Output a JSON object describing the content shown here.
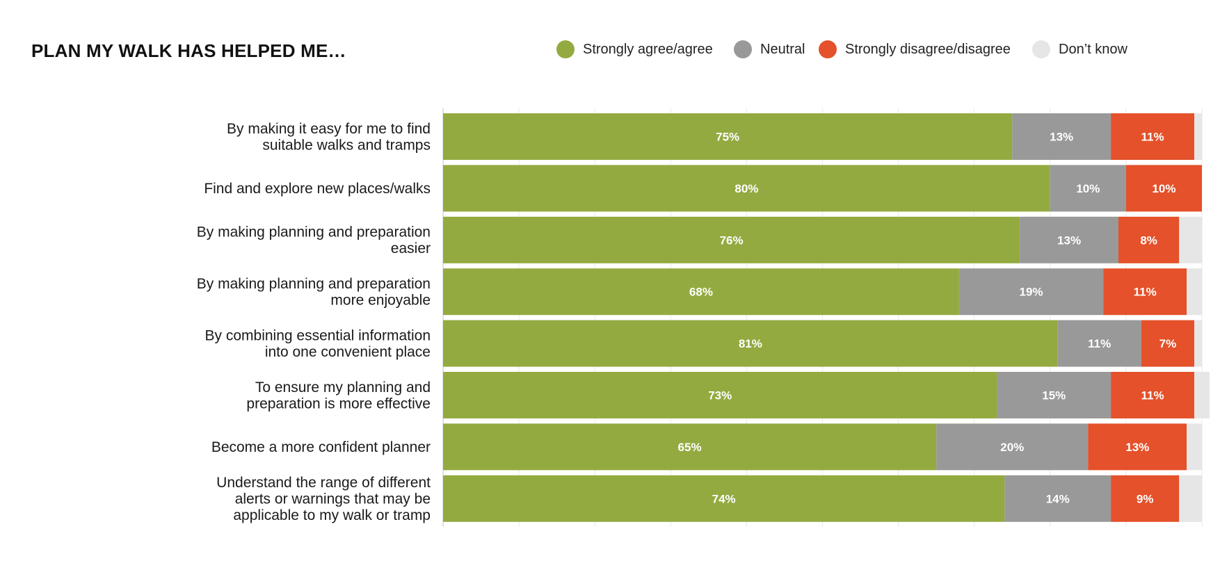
{
  "chart_data": {
    "type": "bar",
    "orientation": "horizontal",
    "stacked": true,
    "title": "PLAN MY WALK HAS HELPED ME…",
    "xlim": [
      0,
      100
    ],
    "grid": true,
    "legend_position": "top-right",
    "categories": [
      [
        "By making it easy for me to find",
        "suitable walks and tramps"
      ],
      [
        "Find and explore new places/walks"
      ],
      [
        "By making planning and preparation",
        "easier"
      ],
      [
        "By making planning and preparation",
        "more enjoyable"
      ],
      [
        "By combining essential information",
        "into one convenient place"
      ],
      [
        "To ensure my planning and",
        "preparation is more effective"
      ],
      [
        "Become a more confident planner"
      ],
      [
        "Understand the range of different",
        "alerts or warnings that may be",
        "applicable to my walk or tramp"
      ]
    ],
    "series": [
      {
        "name": "Strongly agree/agree",
        "color": "#93aa40",
        "values": [
          75,
          80,
          76,
          68,
          81,
          73,
          65,
          74
        ],
        "labels": [
          "75%",
          "80%",
          "76%",
          "68%",
          "81%",
          "73%",
          "65%",
          "74%"
        ]
      },
      {
        "name": "Neutral",
        "color": "#999999",
        "values": [
          13,
          10,
          13,
          19,
          11,
          15,
          20,
          14
        ],
        "labels": [
          "13%",
          "10%",
          "13%",
          "19%",
          "11%",
          "15%",
          "20%",
          "14%"
        ]
      },
      {
        "name": "Strongly disagree/disagree",
        "color": "#e4512a",
        "values": [
          11,
          10,
          8,
          11,
          7,
          11,
          13,
          9
        ],
        "labels": [
          "11%",
          "10%",
          "8%",
          "11%",
          "7%",
          "11%",
          "13%",
          "9%"
        ]
      },
      {
        "name": "Don’t know",
        "color": "#e6e6e6",
        "values": [
          1,
          0,
          3,
          2,
          1,
          2,
          2,
          3
        ],
        "labels": [
          "",
          "",
          "",
          "",
          "",
          "",
          "",
          ""
        ]
      }
    ]
  }
}
